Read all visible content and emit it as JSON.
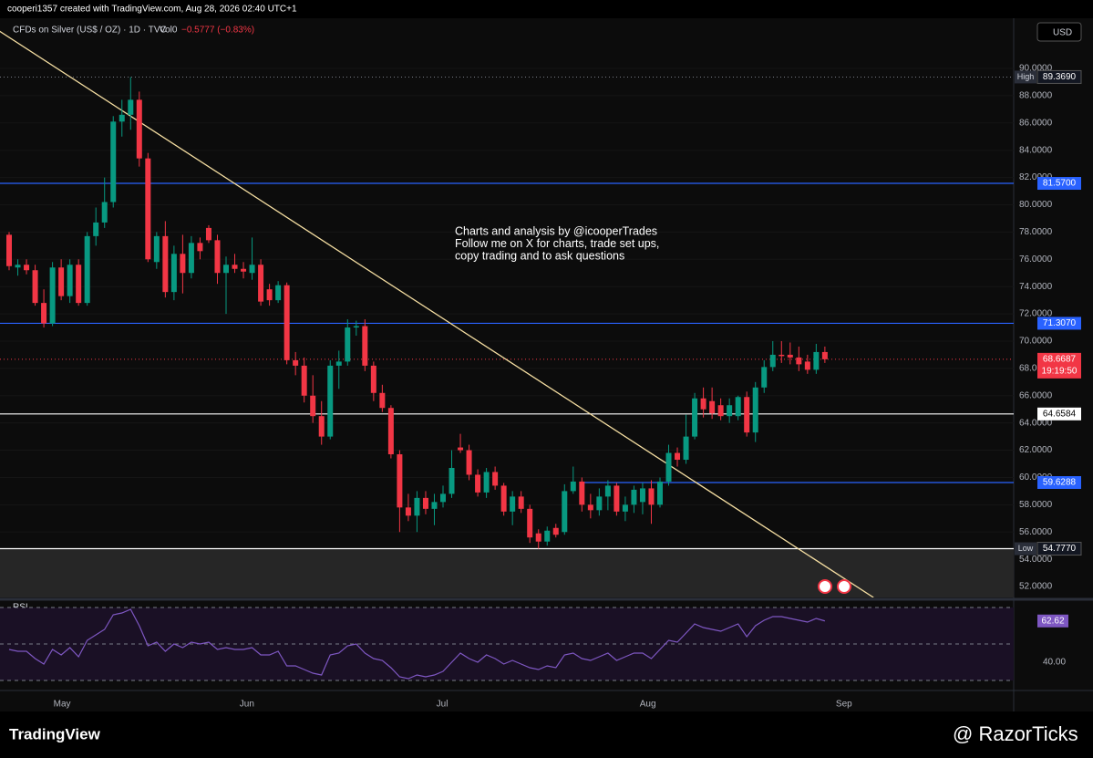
{
  "header": {
    "credit": "cooperi1357 created with TradingView.com, Aug 28, 2026 02:40 UTC+1",
    "symbol": "CFDs on Silver (US$ / OZ) · 1D · TVC",
    "volume": "Vol0",
    "change": "−0.5777 (−0.83%)",
    "currency": "USD"
  },
  "chart_data": {
    "type": "candlestick",
    "up_color": "#089981",
    "down_color": "#f23645",
    "open": [
      77.8,
      75.4,
      75.6,
      75.2,
      72.8,
      71.3,
      75.4,
      73.3,
      75.6,
      72.8,
      77.7,
      78.7,
      80.2,
      86.1,
      86.6,
      87.7,
      83.4,
      75.8,
      77.7,
      73.6,
      76.4,
      75,
      77.2,
      78.3,
      77.4,
      75,
      75.6,
      75.3,
      75,
      75.6,
      73.8,
      73,
      74.1,
      68.6,
      68.2,
      66,
      64.5,
      63,
      68.2,
      68.5,
      71,
      71.1,
      68.2,
      66.2,
      65.1,
      61.7,
      57.8,
      57.2,
      58.5,
      57.7,
      58.2,
      58.8,
      62.2,
      62,
      60.2,
      58.9,
      60.4,
      59.4,
      57.5,
      58.6,
      57.7,
      55.9,
      55.3,
      56.3,
      56,
      59,
      59.7,
      58,
      57.6,
      58.6,
      59.4,
      57.5,
      58,
      58.2,
      59.2,
      58,
      59.7,
      61.8,
      61.3,
      63,
      65.8,
      65.6,
      65.3,
      64.5,
      64.5,
      65.9,
      63.3,
      66.6,
      68.1,
      69,
      69,
      68.8,
      68.5,
      67.9,
      69.2
    ],
    "high": [
      78,
      76,
      76,
      75.6,
      73.8,
      75.8,
      76,
      76,
      76,
      78,
      79.8,
      82,
      86.5,
      87.7,
      89.369,
      88.3,
      83.8,
      78,
      78.8,
      77,
      77.8,
      77.7,
      77.6,
      78.5,
      77.8,
      76.2,
      76.4,
      75.8,
      77.6,
      76,
      74.2,
      74.4,
      74.3,
      69.2,
      68.8,
      67.5,
      65.6,
      68.6,
      69.3,
      71.6,
      71.5,
      71.6,
      68.5,
      66.8,
      65.3,
      62,
      58.8,
      59,
      59,
      58.8,
      59.4,
      62,
      63.2,
      62.4,
      60.6,
      60.7,
      60.8,
      59.6,
      59,
      59,
      58,
      56.2,
      56.4,
      56.6,
      59.5,
      60.8,
      60,
      58.8,
      59.2,
      59.8,
      59.6,
      58.6,
      59.4,
      59.6,
      59.8,
      60,
      62.4,
      62.2,
      64.6,
      66.2,
      66.6,
      66.6,
      65.8,
      65.8,
      66,
      66.3,
      67,
      68.6,
      70,
      70,
      69.9,
      69.6,
      69,
      69.8,
      69.6
    ],
    "low": [
      75.2,
      74.8,
      74.9,
      72.6,
      71,
      71.1,
      73,
      72.8,
      72.6,
      72.6,
      77,
      78.3,
      79.8,
      85,
      85.5,
      82.8,
      75.8,
      75.3,
      73.2,
      73,
      73.5,
      74.6,
      76,
      77.2,
      74.2,
      72,
      75,
      74.6,
      74.5,
      72.6,
      72.6,
      72.8,
      68.3,
      67.5,
      65.5,
      64,
      62.4,
      62.8,
      66.5,
      68.2,
      70.4,
      67.8,
      65.6,
      64.8,
      61.4,
      56,
      56.8,
      56,
      57.3,
      56.5,
      57.8,
      58.5,
      61.8,
      59.8,
      58.6,
      58.5,
      59.1,
      57.2,
      56.5,
      57.4,
      55.2,
      54.777,
      55,
      55.6,
      55.8,
      58.8,
      57.5,
      57,
      57.2,
      57.6,
      57.2,
      56.8,
      57.4,
      57.3,
      56.6,
      57.8,
      59.4,
      60.8,
      61,
      62.8,
      64.4,
      64.3,
      64.2,
      64,
      64.2,
      63,
      62.6,
      66.2,
      67.8,
      68.4,
      68.3,
      67.8,
      67.6,
      67.6,
      68.4
    ],
    "close": [
      75.5,
      75.6,
      75.2,
      72.8,
      71.3,
      75.4,
      73.3,
      75.6,
      72.8,
      77.7,
      78.7,
      80.2,
      86.1,
      86.6,
      87.7,
      83.4,
      76,
      77.7,
      73.6,
      76.4,
      75,
      77.2,
      76.6,
      77.4,
      75,
      75.6,
      75.3,
      75.1,
      75.6,
      72.9,
      73,
      74.1,
      68.6,
      68.2,
      66,
      64.5,
      63,
      68.2,
      68.5,
      71,
      71.1,
      68.2,
      66.2,
      65.1,
      61.7,
      57.8,
      57.2,
      58.5,
      57.7,
      58.2,
      58.8,
      60.7,
      62,
      60.2,
      58.9,
      60.4,
      59.4,
      57.5,
      58.6,
      57.7,
      55.6,
      55.3,
      56.1,
      55.8,
      59,
      59.7,
      58,
      57.6,
      58.6,
      59.4,
      57.5,
      58,
      59.1,
      59.2,
      58,
      59.7,
      61.8,
      61.3,
      63,
      65.8,
      65,
      64.7,
      64.5,
      65.3,
      65.9,
      63.3,
      66.6,
      68.1,
      69,
      68.9,
      68.8,
      68.3,
      67.9,
      69.2,
      68.6687
    ],
    "ylim": [
      51.2,
      93.68
    ],
    "yticks": [
      {
        "value": 52,
        "label": "52.0000"
      },
      {
        "value": 54,
        "label": "54.0000"
      },
      {
        "value": 56,
        "label": "56.0000"
      },
      {
        "value": 58,
        "label": "58.0000"
      },
      {
        "value": 60,
        "label": "60.0000"
      },
      {
        "value": 62,
        "label": "62.0000"
      },
      {
        "value": 64,
        "label": "64.0000"
      },
      {
        "value": 66,
        "label": "66.0000"
      },
      {
        "value": 68,
        "label": "68.0000"
      },
      {
        "value": 70,
        "label": "70.0000"
      },
      {
        "value": 72,
        "label": "72.0000"
      },
      {
        "value": 74,
        "label": "74.0000"
      },
      {
        "value": 76,
        "label": "76.0000"
      },
      {
        "value": 78,
        "label": "78.0000"
      },
      {
        "value": 80,
        "label": "80.0000"
      },
      {
        "value": 82,
        "label": "82.0000"
      },
      {
        "value": 84,
        "label": "84.0000"
      },
      {
        "value": 86,
        "label": "86.0000"
      },
      {
        "value": 88,
        "label": "88.0000"
      },
      {
        "value": 90,
        "label": "90.0000"
      }
    ],
    "xticks": [
      {
        "value": 6.1,
        "label": "May"
      },
      {
        "value": 27.4,
        "label": "Jun"
      },
      {
        "value": 49.9,
        "label": "Jul"
      },
      {
        "value": 73.6,
        "label": "Aug"
      },
      {
        "value": 96.2,
        "label": "Sep"
      }
    ],
    "levels": [
      {
        "name": "High",
        "value": 89.369,
        "label": "89.3690",
        "color": "#787b86",
        "style": "dotted"
      },
      {
        "value": 81.57,
        "label": "81.5700",
        "color": "#2962ff",
        "style": "solid"
      },
      {
        "value": 71.307,
        "label": "71.3070",
        "color": "#2962ff",
        "style": "solid"
      },
      {
        "value": 68.6687,
        "color": "#f23645",
        "style": "dotted",
        "countdown": "19:19:50"
      },
      {
        "value": 64.6584,
        "color": "#ffffff",
        "style": "solid"
      },
      {
        "value": 59.6288,
        "color": "#2962ff",
        "style": "solid",
        "x_start": 66
      },
      {
        "name": "Low",
        "value": 54.777,
        "label": "54.7770",
        "color": "#ffffff",
        "style": "solid"
      }
    ],
    "trend_line": {
      "x": [
        -2,
        99.6
      ],
      "y": [
        93.1,
        51.2
      ],
      "color": "#f7e0a3"
    },
    "annotation": [
      "Charts and analysis by @icooperTrades",
      "Follow me on X for charts, trade set ups,",
      "copy trading and to ask questions"
    ],
    "rsi": {
      "name": "RSI",
      "color": "#7e57c2",
      "ylim": [
        27,
        73
      ],
      "yticks": [
        {
          "value": 40,
          "label": "40.00"
        }
      ],
      "bands": [
        30,
        50,
        70
      ],
      "values": [
        47,
        46,
        46,
        42,
        39,
        47,
        44,
        48,
        43,
        52,
        55,
        58,
        66,
        67,
        69,
        60,
        49,
        51,
        46,
        50,
        48,
        51,
        50,
        51,
        47,
        48,
        47,
        47,
        48,
        44,
        44,
        46,
        38,
        38,
        36,
        34,
        33,
        44,
        45,
        49,
        50,
        45,
        42,
        41,
        37,
        32,
        31,
        33,
        32,
        33,
        35,
        40,
        45,
        42,
        40,
        44,
        42,
        39,
        41,
        39,
        37,
        36,
        38,
        37,
        44,
        45,
        42,
        41,
        43,
        45,
        41,
        43,
        45,
        45,
        42,
        47,
        52,
        51,
        56,
        61,
        59,
        58,
        57,
        59,
        61,
        54,
        60,
        63,
        65,
        65,
        64,
        63,
        62,
        64,
        62.62
      ]
    }
  },
  "footer": {
    "logo": "TradingView",
    "watermark": "@ RazorTicks"
  }
}
